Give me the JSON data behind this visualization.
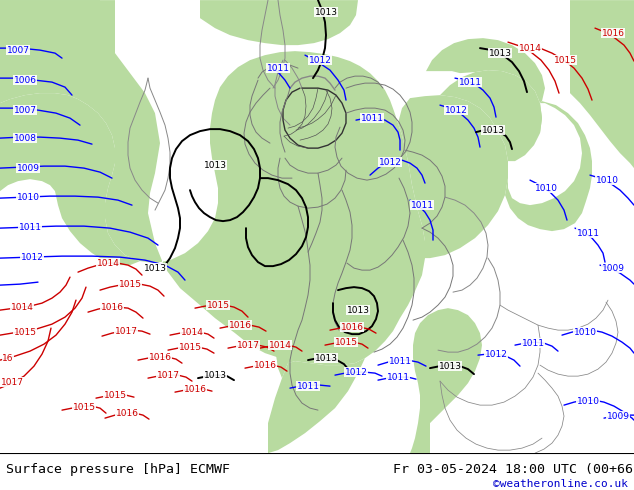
{
  "title_left": "Surface pressure [hPa] ECMWF",
  "title_right": "Fr 03-05-2024 18:00 UTC (00+66)",
  "credit": "©weatheronline.co.uk",
  "credit_color": "#0000cc",
  "map_bg_gray": "#c8c8c8",
  "land_green": "#b8dba0",
  "blue": "#0000ff",
  "red": "#cc0000",
  "black": "#000000",
  "border_color": "#888888",
  "lw_isobar": 1.0,
  "lw_border": 0.7,
  "label_fontsize": 6.5,
  "title_fontsize": 9.5,
  "credit_fontsize": 8
}
